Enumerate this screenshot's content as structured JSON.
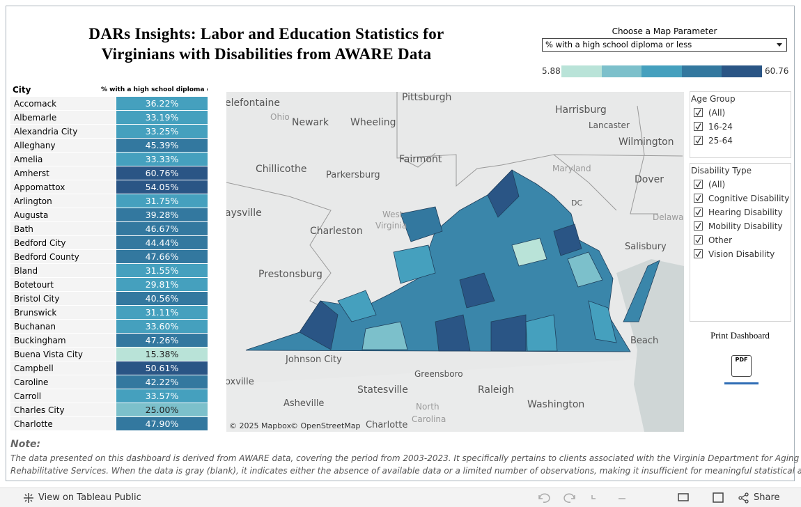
{
  "header": {
    "title": "DARs Insights: Labor and Education Statistics for Virginians with Disabilities from AWARE Data"
  },
  "parameter": {
    "label": "Choose a Map Parameter",
    "selected": "% with a high school diploma or less",
    "legend": {
      "min": "5.88",
      "max": "60.76",
      "colors": [
        "#b9e3d8",
        "#7cc0cb",
        "#45a0be",
        "#33789f",
        "#2a5585"
      ]
    }
  },
  "table": {
    "columns": [
      "City",
      "% with a high school diploma or less"
    ],
    "rows": [
      {
        "city": "Accomack",
        "value": "36.22%",
        "color": "#45a0be"
      },
      {
        "city": "Albemarle",
        "value": "33.19%",
        "color": "#45a0be"
      },
      {
        "city": "Alexandria City",
        "value": "33.25%",
        "color": "#45a0be"
      },
      {
        "city": "Alleghany",
        "value": "45.39%",
        "color": "#33789f"
      },
      {
        "city": "Amelia",
        "value": "33.33%",
        "color": "#45a0be"
      },
      {
        "city": "Amherst",
        "value": "60.76%",
        "color": "#2a5585"
      },
      {
        "city": "Appomattox",
        "value": "54.05%",
        "color": "#2a5585"
      },
      {
        "city": "Arlington",
        "value": "31.75%",
        "color": "#45a0be"
      },
      {
        "city": "Augusta",
        "value": "39.28%",
        "color": "#33789f"
      },
      {
        "city": "Bath",
        "value": "46.67%",
        "color": "#33789f"
      },
      {
        "city": "Bedford City",
        "value": "44.44%",
        "color": "#33789f"
      },
      {
        "city": "Bedford County",
        "value": "47.66%",
        "color": "#33789f"
      },
      {
        "city": "Bland",
        "value": "31.55%",
        "color": "#45a0be"
      },
      {
        "city": "Botetourt",
        "value": "29.81%",
        "color": "#45a0be"
      },
      {
        "city": "Bristol City",
        "value": "40.56%",
        "color": "#33789f"
      },
      {
        "city": "Brunswick",
        "value": "31.11%",
        "color": "#45a0be"
      },
      {
        "city": "Buchanan",
        "value": "33.60%",
        "color": "#45a0be"
      },
      {
        "city": "Buckingham",
        "value": "47.26%",
        "color": "#33789f"
      },
      {
        "city": "Buena Vista City",
        "value": "15.38%",
        "color": "#b9e3d8"
      },
      {
        "city": "Campbell",
        "value": "50.61%",
        "color": "#2a5585"
      },
      {
        "city": "Caroline",
        "value": "42.22%",
        "color": "#33789f"
      },
      {
        "city": "Carroll",
        "value": "33.57%",
        "color": "#45a0be"
      },
      {
        "city": "Charles City",
        "value": "25.00%",
        "color": "#7cc0cb"
      },
      {
        "city": "Charlotte",
        "value": "47.90%",
        "color": "#33789f"
      }
    ]
  },
  "map": {
    "labels": [
      "elefontaine",
      "Ohio",
      "Newark",
      "Pittsburgh",
      "Wheeling",
      "Harrisburg",
      "Lancaster",
      "Wilmington",
      "Chillicothe",
      "Parkersburg",
      "Fairmont",
      "Maryland",
      "Dover",
      "DC",
      "aysville",
      "West",
      "Virginia",
      "Charleston",
      "Delaware",
      "Salisbury",
      "Prestonsburg",
      "Beach",
      "Johnson City",
      "Greensboro",
      "oxville",
      "Statesville",
      "Raleigh",
      "Asheville",
      "North",
      "Carolina",
      "Washington",
      "Charlotte"
    ],
    "attribution": [
      "© 2025 Mapbox",
      "© OpenStreetMap"
    ]
  },
  "filters": [
    {
      "title": "Age Group",
      "options": [
        "(All)",
        "16-24",
        "25-64"
      ]
    },
    {
      "title": "Disability Type",
      "options": [
        "(All)",
        "Cognitive Disability",
        "Hearing Disability",
        "Mobility Disability",
        "Other",
        "Vision Disability"
      ]
    }
  ],
  "print": {
    "label": "Print Dashboard",
    "icon": "PDF"
  },
  "note": {
    "heading": "Note:",
    "lines": [
      "The data presented on this dashboard is derived from AWARE data, covering the period from 2003-2023. It specifically pertains to clients associated with the Virginia Department for Aging and",
      "Rehabilitative Services.  When the data is gray (blank), it indicates either the absence of available data or a limited number of observations, making it insufficient for meaningful statistical analysis."
    ]
  },
  "footer": {
    "link": "View on Tableau Public",
    "share": "Share"
  }
}
